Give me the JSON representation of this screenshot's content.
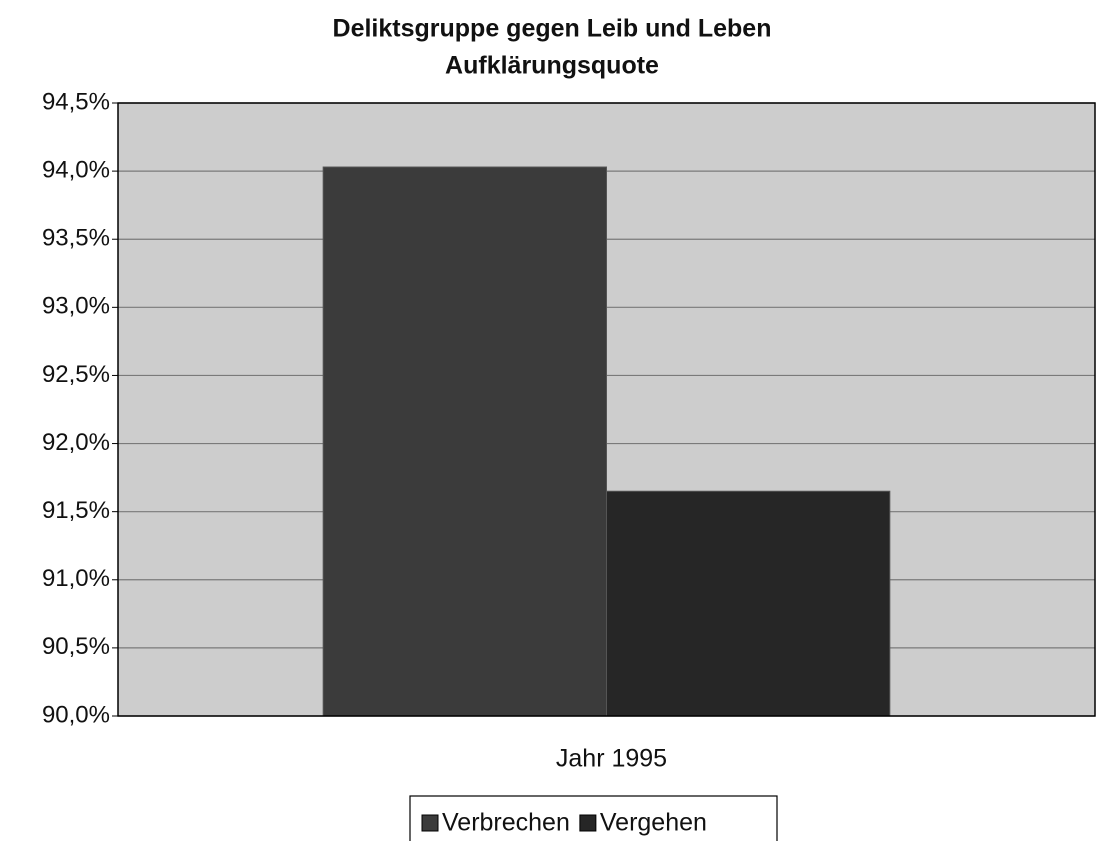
{
  "chart_data": {
    "type": "bar",
    "title": [
      "Deliktsgruppe gegen Leib und Leben",
      "Aufklärungsquote"
    ],
    "categories": [
      "Jahr 1995"
    ],
    "series": [
      {
        "name": "Verbrechen",
        "color": "#3b3b3b",
        "values": [
          94.03
        ]
      },
      {
        "name": "Vergehen",
        "color": "#262626",
        "values": [
          91.65
        ]
      }
    ],
    "ylim": [
      90.0,
      94.5
    ],
    "yticks": [
      {
        "value": 90.0,
        "label": "90,0%"
      },
      {
        "value": 90.5,
        "label": "90,5%"
      },
      {
        "value": 91.0,
        "label": "91,0%"
      },
      {
        "value": 91.5,
        "label": "91,5%"
      },
      {
        "value": 92.0,
        "label": "92,0%"
      },
      {
        "value": 92.5,
        "label": "92,5%"
      },
      {
        "value": 93.0,
        "label": "93,0%"
      },
      {
        "value": 93.5,
        "label": "93,5%"
      },
      {
        "value": 94.0,
        "label": "94,0%"
      },
      {
        "value": 94.5,
        "label": "94,5%"
      }
    ],
    "grid": true,
    "legend": "bottom"
  }
}
